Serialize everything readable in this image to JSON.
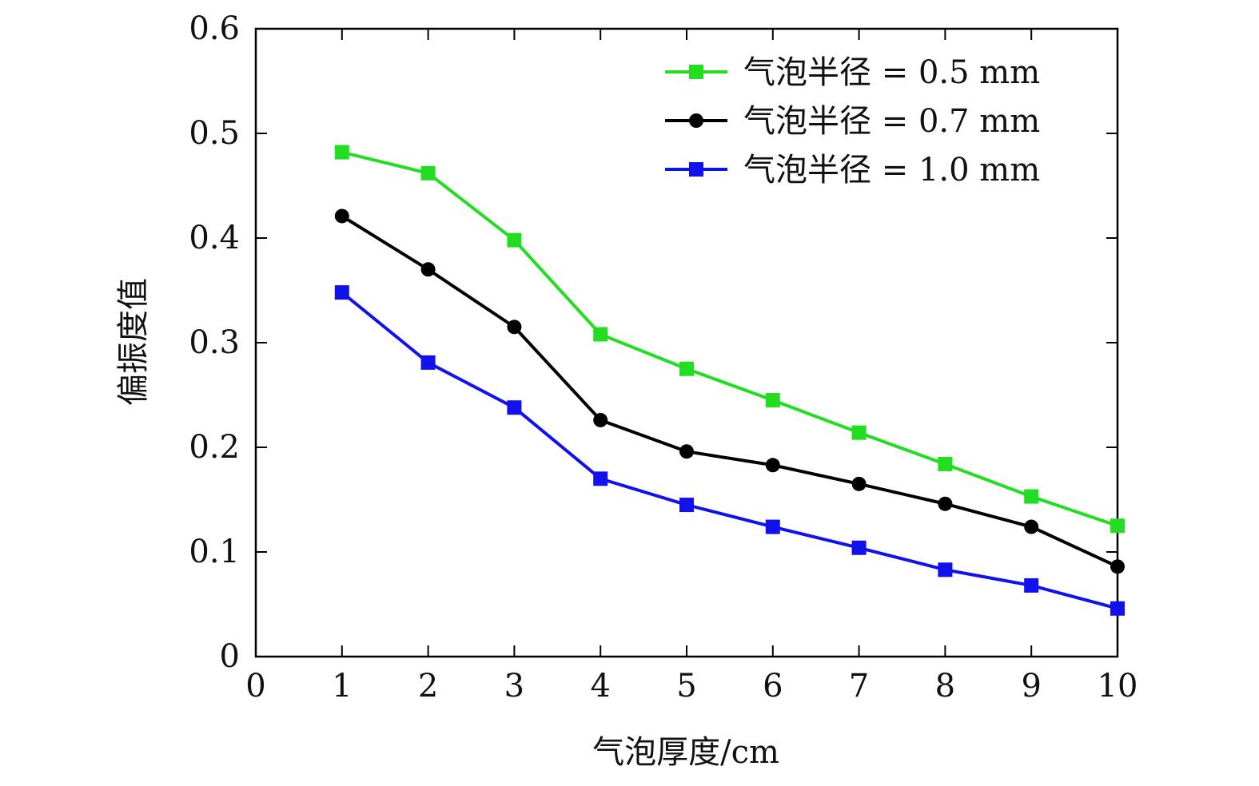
{
  "chart_data": {
    "type": "line",
    "title": "",
    "xlabel": "气泡厚度/cm",
    "ylabel": "偏振度值",
    "xlim": [
      0,
      10
    ],
    "ylim": [
      0,
      0.6
    ],
    "xticks": [
      "0",
      "1",
      "2",
      "3",
      "4",
      "5",
      "6",
      "7",
      "8",
      "9",
      "10"
    ],
    "yticks": [
      "0",
      "0.1",
      "0.2",
      "0.3",
      "0.4",
      "0.5",
      "0.6"
    ],
    "grid": false,
    "legend_position": "top-right",
    "x": [
      1,
      2,
      3,
      4,
      5,
      6,
      7,
      8,
      9,
      10
    ],
    "series": [
      {
        "name": "气泡半径 = 0.5 mm",
        "color": "#22dd22",
        "marker": "square",
        "values": [
          0.482,
          0.462,
          0.398,
          0.308,
          0.275,
          0.245,
          0.214,
          0.184,
          0.153,
          0.125
        ]
      },
      {
        "name": "气泡半径 = 0.7 mm",
        "color": "#000000",
        "marker": "circle",
        "values": [
          0.421,
          0.37,
          0.315,
          0.226,
          0.196,
          0.183,
          0.165,
          0.146,
          0.124,
          0.086
        ]
      },
      {
        "name": "气泡半径 = 1.0 mm",
        "color": "#1111ee",
        "marker": "square",
        "values": [
          0.348,
          0.281,
          0.238,
          0.17,
          0.145,
          0.124,
          0.104,
          0.083,
          0.068,
          0.046
        ]
      }
    ]
  }
}
